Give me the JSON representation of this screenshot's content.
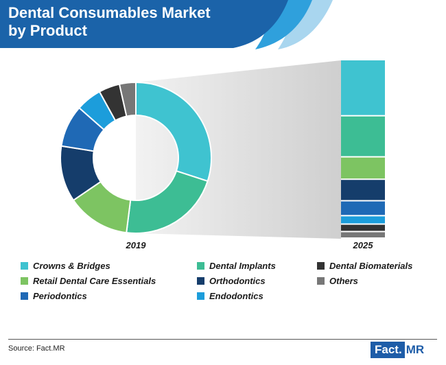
{
  "header": {
    "title_line1": "Dental Consumables Market",
    "title_line2": "by Product"
  },
  "chart_data": {
    "type": "pie",
    "title": "Dental Consumables Market by Product",
    "categories": [
      "Crowns & Bridges",
      "Dental Implants",
      "Retail Dental Care Essentials",
      "Orthodontics",
      "Periodontics",
      "Endodontics",
      "Dental Biomaterials",
      "Others"
    ],
    "colors": [
      "#3fc3d0",
      "#3dbd94",
      "#7dc462",
      "#153d6b",
      "#1f69b5",
      "#1c9ddb",
      "#333333",
      "#777777"
    ],
    "series": [
      {
        "name": "2019",
        "values": [
          30.0,
          22.0,
          13.5,
          12.0,
          9.0,
          5.5,
          4.5,
          3.5
        ]
      },
      {
        "name": "2025",
        "values": [
          30.0,
          22.0,
          12.0,
          11.5,
          8.0,
          4.5,
          4.0,
          3.5
        ]
      }
    ],
    "legend": "bottom"
  },
  "legend": {
    "items": [
      "Crowns & Bridges",
      "Dental Implants",
      "Dental Biomaterials",
      "Retail Dental Care Essentials",
      "Orthodontics",
      "Others",
      "Periodontics",
      "Endodontics"
    ]
  },
  "footer": {
    "source": "Source: Fact.MR",
    "logo_left": "Fact.",
    "logo_right": "MR"
  }
}
